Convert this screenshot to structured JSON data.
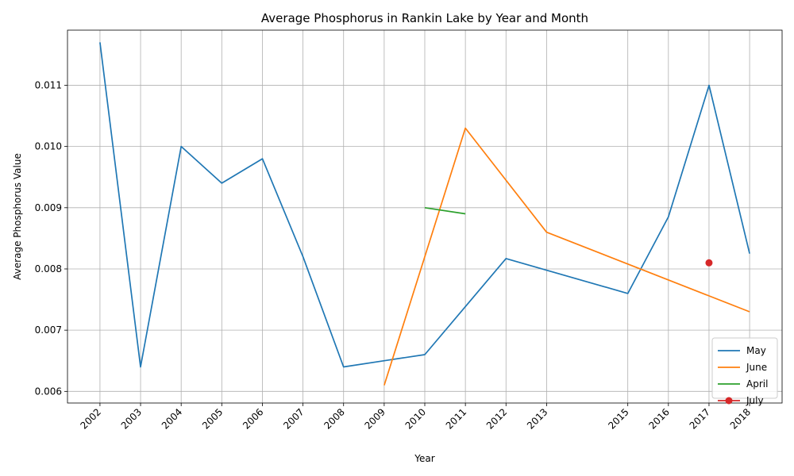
{
  "chart_data": {
    "type": "line",
    "title": "Average Phosphorus in Rankin Lake by Year and Month",
    "xlabel": "Year",
    "ylabel": "Average Phosphorus Value",
    "xlim": [
      2001.2,
      2018.8
    ],
    "ylim": [
      0.00581,
      0.0119
    ],
    "xticks": [
      2002,
      2003,
      2004,
      2005,
      2006,
      2007,
      2008,
      2009,
      2010,
      2011,
      2012,
      2013,
      2015,
      2016,
      2017,
      2018
    ],
    "yticks": [
      "0.006",
      "0.007",
      "0.008",
      "0.009",
      "0.010",
      "0.011"
    ],
    "grid": true,
    "legend_position": "lower-right",
    "series": [
      {
        "name": "May",
        "color": "#1f77b4",
        "marker": "none",
        "x": [
          2002,
          2003,
          2004,
          2005,
          2006,
          2007,
          2008,
          2009,
          2010,
          2012,
          2015,
          2016,
          2017,
          2018
        ],
        "y": [
          0.0117,
          0.0064,
          0.01,
          0.0094,
          0.0098,
          0.0082,
          0.0064,
          0.0065,
          0.0066,
          0.00817,
          0.0076,
          0.00885,
          0.011,
          0.00825
        ]
      },
      {
        "name": "June",
        "color": "#ff7f0e",
        "marker": "none",
        "x": [
          2009,
          2011,
          2013,
          2018
        ],
        "y": [
          0.0061,
          0.0103,
          0.0086,
          0.0073
        ]
      },
      {
        "name": "April",
        "color": "#2ca02c",
        "marker": "none",
        "x": [
          2010,
          2011
        ],
        "y": [
          0.009,
          0.0089
        ]
      },
      {
        "name": "July",
        "color": "#d62728",
        "marker": "circle",
        "x": [
          2017
        ],
        "y": [
          0.0081
        ]
      }
    ]
  }
}
